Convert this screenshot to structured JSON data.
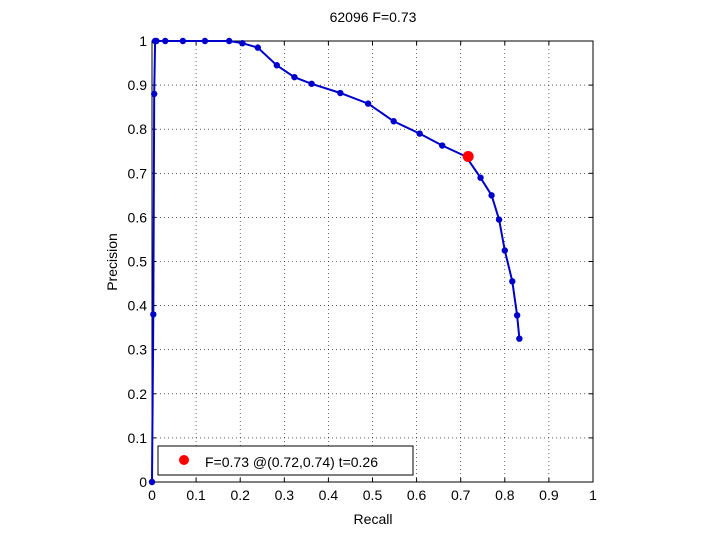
{
  "chart_data": {
    "type": "line",
    "title": "62096 F=0.73",
    "xlabel": "Recall",
    "ylabel": "Precision",
    "xlim": [
      0,
      1
    ],
    "ylim": [
      0,
      1
    ],
    "xticks": [
      0,
      0.1,
      0.2,
      0.3,
      0.4,
      0.5,
      0.6,
      0.7,
      0.8,
      0.9,
      1
    ],
    "yticks": [
      0,
      0.1,
      0.2,
      0.3,
      0.4,
      0.5,
      0.6,
      0.7,
      0.8,
      0.9,
      1
    ],
    "xtick_labels": [
      "0",
      "0.1",
      "0.2",
      "0.3",
      "0.4",
      "0.5",
      "0.6",
      "0.7",
      "0.8",
      "0.9",
      "1"
    ],
    "ytick_labels": [
      "0",
      "0.1",
      "0.2",
      "0.3",
      "0.4",
      "0.5",
      "0.6",
      "0.7",
      "0.8",
      "0.9",
      "1"
    ],
    "grid": true,
    "legend_position": "bottom-left",
    "series": [
      {
        "color": "#0000cc",
        "x": [
          0,
          0.003,
          0.005,
          0.007,
          0.01,
          0.03,
          0.07,
          0.12,
          0.175,
          0.205,
          0.24,
          0.283,
          0.323,
          0.362,
          0.427,
          0.49,
          0.548,
          0.607,
          0.658,
          0.712,
          0.745,
          0.77,
          0.787,
          0.8,
          0.817,
          0.828,
          0.833
        ],
        "y": [
          0,
          0.38,
          0.88,
          1.0,
          1.0,
          1.0,
          1.0,
          1.0,
          1.0,
          0.995,
          0.985,
          0.945,
          0.918,
          0.903,
          0.882,
          0.858,
          0.818,
          0.79,
          0.763,
          0.738,
          0.69,
          0.65,
          0.595,
          0.525,
          0.455,
          0.378,
          0.325
        ]
      }
    ],
    "highlight_point": {
      "x": 0.717,
      "y": 0.738,
      "color": "#ff0000"
    },
    "legend": {
      "label": "F=0.73 @(0.72,0.74) t=0.26",
      "marker_color": "#ff0000"
    }
  }
}
